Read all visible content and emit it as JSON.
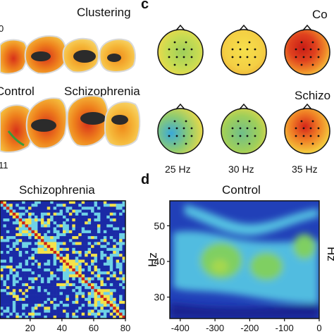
{
  "figure": {
    "panel_c_letter": "c",
    "panel_d_letter": "d",
    "top_left": {
      "title": "Clustering",
      "edge_number_top": "0",
      "edge_number_bottom": "11",
      "group_control": "Control",
      "group_schizophrenia": "Schizophrenia",
      "colors": {
        "hot": "#d32a14",
        "mid": "#ef8a1a",
        "warm": "#f6c43a",
        "base": "#f2b050",
        "medial": "#2b2b2b",
        "rim": "#e9e9e9",
        "green": "#3a9a3a"
      }
    },
    "top_right": {
      "title_control_partial": "Co",
      "title_schizophrenia_partial": "Schizo",
      "frequency_labels": [
        "25 Hz",
        "30 Hz",
        "35 Hz"
      ],
      "colors": {
        "blue": "#3aa9d8",
        "green": "#9fcf5a",
        "yellow": "#f4e14a",
        "orange": "#f39a2b",
        "red": "#d4241a"
      }
    },
    "bottom_left": {
      "title": "Schizophrenia",
      "colors": {
        "background": "#1a2aa6",
        "light": "#6fd2e6",
        "yellow": "#f4e24a",
        "red": "#c8221a"
      }
    },
    "bottom_right": {
      "title": "Control",
      "ylabel": "Hz",
      "right_edge_label_partial": "Hz",
      "colors": {
        "blue": "#2140b8",
        "cyan": "#5bd2e8",
        "green": "#7fcf62",
        "deep": "#17208c"
      }
    }
  },
  "chart_data": [
    {
      "type": "heatmap",
      "title": "Schizophrenia",
      "xticks": [
        20,
        40,
        60,
        80
      ],
      "xlim": [
        1,
        80
      ],
      "ylim": [
        1,
        80
      ],
      "diagonal_value": "max",
      "colormap": [
        "#1a2aa6",
        "#6fd2e6",
        "#f4e24a",
        "#c8221a"
      ]
    },
    {
      "type": "heatmap",
      "title": "Control",
      "ylabel": "Hz",
      "xticks": [
        -400,
        -300,
        -200,
        -100,
        0
      ],
      "yticks": [
        30,
        40,
        50
      ],
      "xlim": [
        -430,
        0
      ],
      "ylim": [
        24,
        57
      ],
      "colormap": [
        "#17208c",
        "#2140b8",
        "#5bd2e8",
        "#7fcf62"
      ]
    }
  ]
}
